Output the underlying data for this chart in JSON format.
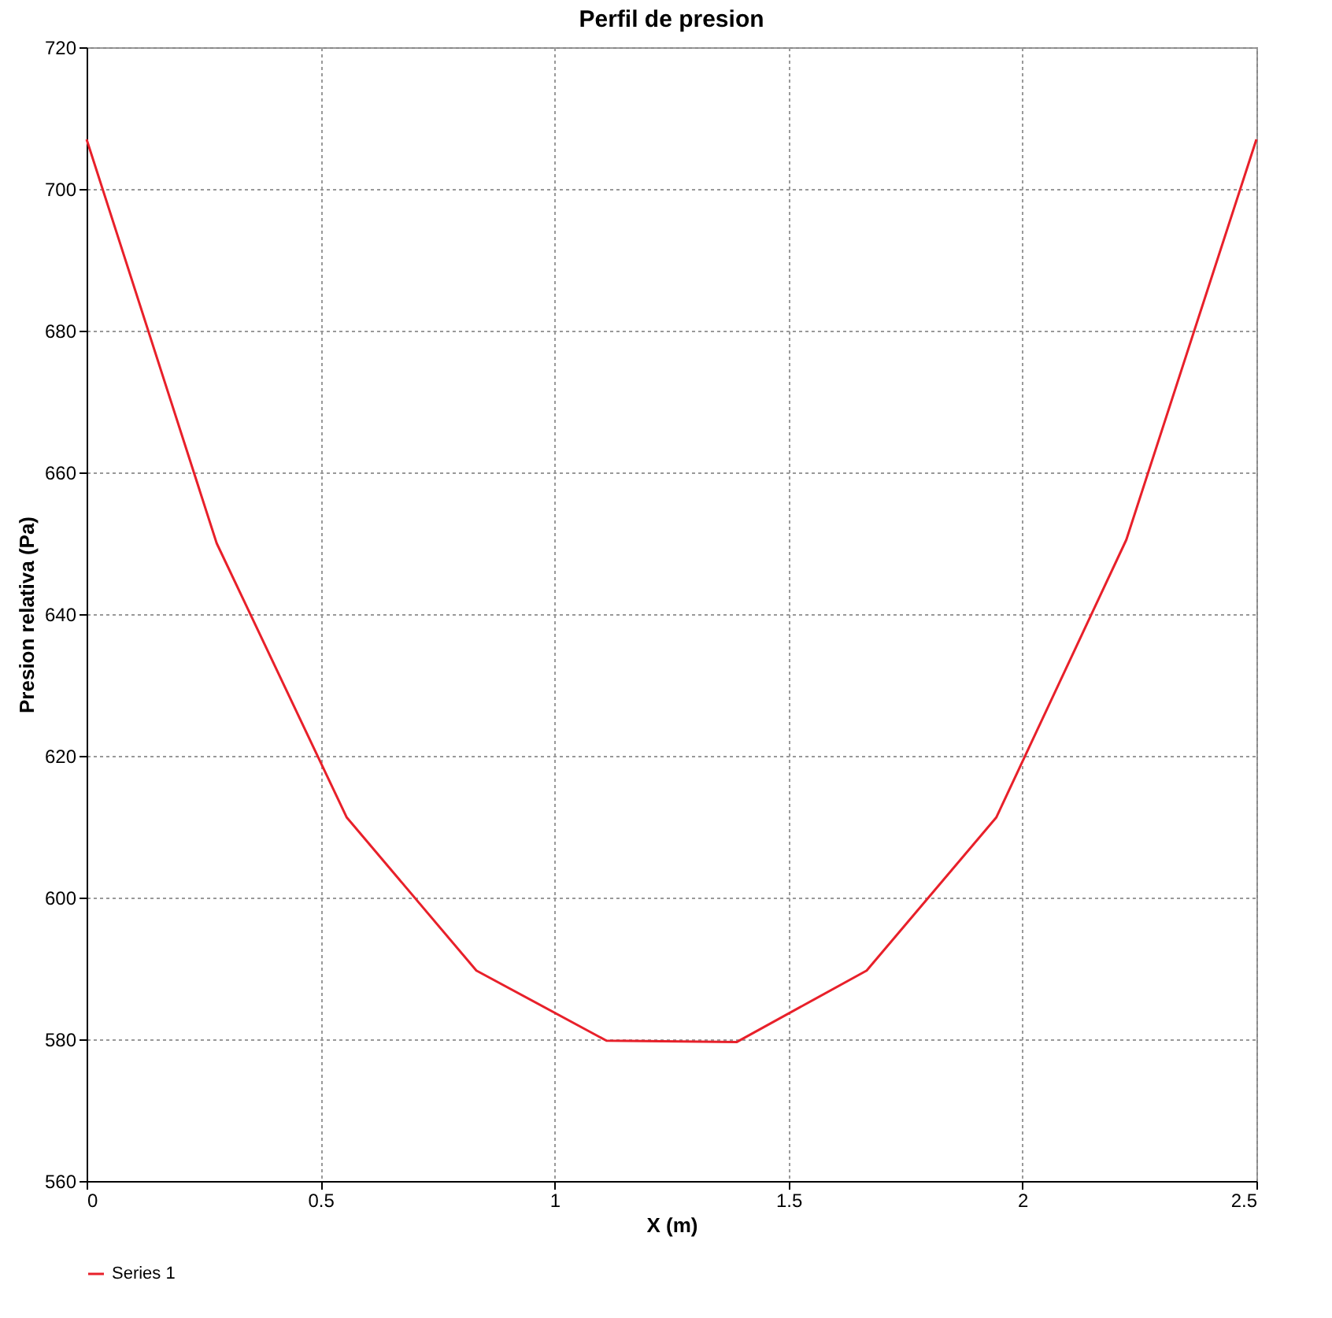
{
  "chart_data": {
    "type": "line",
    "title": "Perfil de presion",
    "xlabel": "X (m)",
    "ylabel": "Presion relativa (Pa)",
    "x": [
      0,
      0.278,
      0.556,
      0.833,
      1.111,
      1.389,
      1.667,
      1.944,
      2.222,
      2.5
    ],
    "series": [
      {
        "name": "Series 1",
        "color": "#e8202a",
        "values": [
          707,
          650,
          611.3,
          589.7,
          579.8,
          579.6,
          589.7,
          611.3,
          650.5,
          707
        ]
      }
    ],
    "xlim": [
      0,
      2.5
    ],
    "xticks": [
      0,
      0.5,
      1,
      1.5,
      2,
      2.5
    ],
    "ylim": [
      560,
      720
    ],
    "yticks": [
      560,
      580,
      600,
      620,
      640,
      660,
      680,
      700,
      720
    ],
    "grid": true,
    "legend": "bottom",
    "marker": "none",
    "line_style": "solid"
  }
}
